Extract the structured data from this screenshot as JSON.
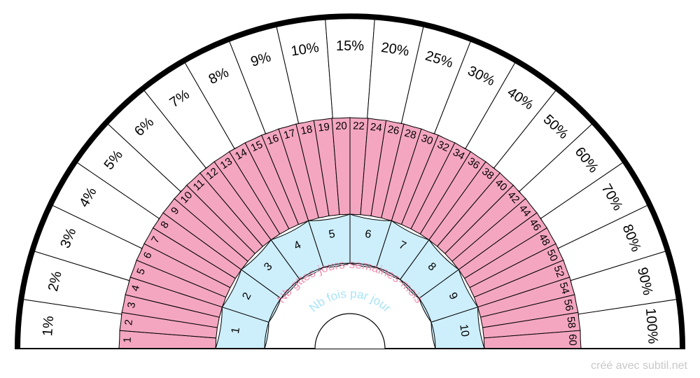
{
  "outer_ring": {
    "labels": [
      "1%",
      "2%",
      "3%",
      "4%",
      "5%",
      "6%",
      "7%",
      "8%",
      "9%",
      "10%",
      "15%",
      "20%",
      "25%",
      "30%",
      "40%",
      "50%",
      "60%",
      "70%",
      "80%",
      "90%",
      "100%"
    ]
  },
  "middle_ring": {
    "labels": [
      "1",
      "2",
      "3",
      "4",
      "5",
      "6",
      "7",
      "8",
      "9",
      "10",
      "11",
      "12",
      "13",
      "14",
      "15",
      "16",
      "17",
      "18",
      "19",
      "20",
      "22",
      "24",
      "26",
      "28",
      "30",
      "32",
      "34",
      "36",
      "38",
      "40",
      "42",
      "44",
      "46",
      "48",
      "50",
      "52",
      "54",
      "56",
      "58",
      "60"
    ],
    "color": "#f4a6c0"
  },
  "inner_ring": {
    "labels": [
      "1",
      "2",
      "3",
      "4",
      "5",
      "6",
      "7",
      "8",
      "9",
      "10"
    ],
    "color": "#cdeefb"
  },
  "arc_labels": {
    "outer": "Nb gttes-jours-semaines-mois",
    "outer_color": "#f08fb0",
    "inner": "Nb fois par jour",
    "inner_color": "#a8e4f8"
  },
  "credit": "créé avec subtil.net"
}
